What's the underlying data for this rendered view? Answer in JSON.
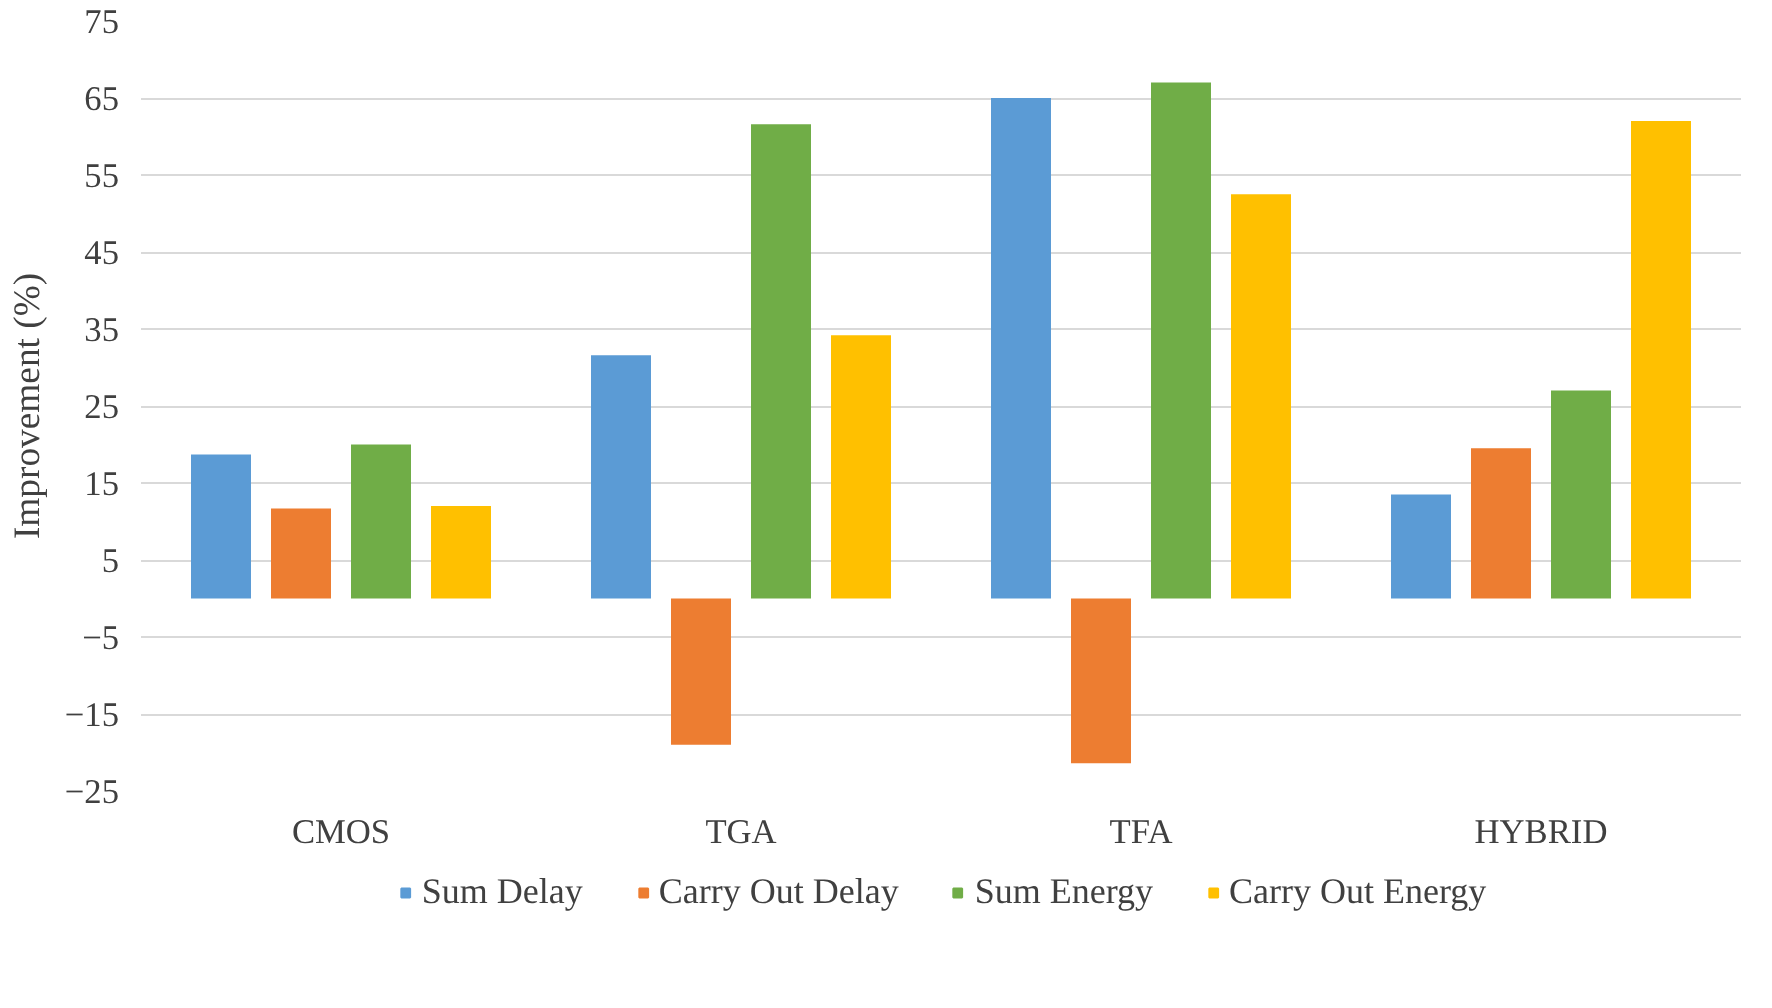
{
  "chart_data": {
    "type": "bar",
    "ylabel": "Improvement (%)",
    "categories": [
      "CMOS",
      "TGA",
      "TFA",
      "HYBRID"
    ],
    "series": [
      {
        "name": "Sum Delay",
        "color": "#5b9bd5",
        "values": [
          18.7,
          31.6,
          65,
          13.5
        ]
      },
      {
        "name": "Carry Out Delay",
        "color": "#ed7d31",
        "values": [
          11.7,
          -19,
          -21.4,
          19.5
        ]
      },
      {
        "name": "Sum Energy",
        "color": "#70ad47",
        "values": [
          20,
          61.6,
          67,
          27
        ]
      },
      {
        "name": "Carry Out Energy",
        "color": "#ffc000",
        "values": [
          12,
          34.2,
          52.5,
          62
        ]
      }
    ],
    "ylim": [
      -25,
      75
    ],
    "yticks": [
      -25,
      -15,
      -5,
      5,
      15,
      25,
      35,
      45,
      55,
      65,
      75
    ],
    "grid": "y",
    "legend": "bottom"
  }
}
